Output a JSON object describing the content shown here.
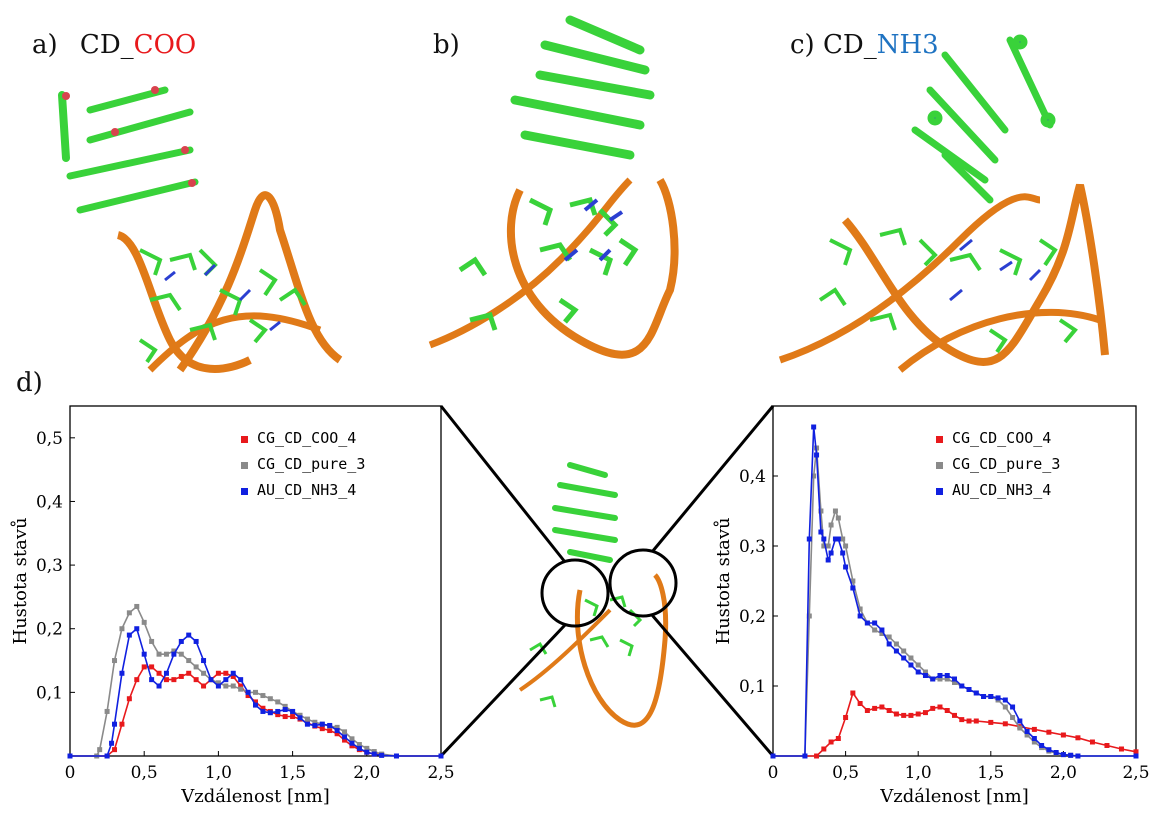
{
  "panels": {
    "a": {
      "prefix": "a)",
      "name": "CD_",
      "suffix": "COO",
      "suffix_color": "#e8191c"
    },
    "b": {
      "prefix": "b)"
    },
    "c": {
      "prefix": "c)",
      "name": "CD_",
      "suffix": "NH3",
      "suffix_color": "#1f73c2"
    },
    "d": {
      "prefix": "d)"
    }
  },
  "colors": {
    "ribbon": "#e07a18",
    "base_green": "#39d23a",
    "nitrogen": "#2b3fd1",
    "oxygen": "#d8434e"
  },
  "chart_data": [
    {
      "type": "line",
      "xlabel": "Vzdálenost [nm]",
      "ylabel": "Hustota stavů",
      "xlim": [
        0,
        2.5
      ],
      "ylim": [
        0,
        0.55
      ],
      "xticks": [
        "0",
        "0,5",
        "1,0",
        "1,5",
        "2,0",
        "2,5"
      ],
      "yticks": [
        "0,1",
        "0,2",
        "0,3",
        "0,4",
        "0,5"
      ],
      "legend_position": "top-right",
      "series": [
        {
          "name": "CG_CD_COO_4",
          "color": "#e8191c",
          "x": [
            0,
            0.25,
            0.3,
            0.35,
            0.4,
            0.45,
            0.5,
            0.55,
            0.6,
            0.65,
            0.7,
            0.75,
            0.8,
            0.85,
            0.9,
            0.95,
            1.0,
            1.05,
            1.1,
            1.15,
            1.2,
            1.25,
            1.3,
            1.35,
            1.4,
            1.45,
            1.5,
            1.55,
            1.6,
            1.65,
            1.7,
            1.75,
            1.8,
            1.85,
            1.9,
            1.95,
            2.0,
            2.05,
            2.1,
            2.2,
            2.5
          ],
          "y": [
            0,
            0,
            0.01,
            0.05,
            0.09,
            0.12,
            0.14,
            0.14,
            0.13,
            0.12,
            0.12,
            0.125,
            0.13,
            0.12,
            0.11,
            0.12,
            0.13,
            0.13,
            0.125,
            0.11,
            0.095,
            0.085,
            0.075,
            0.07,
            0.065,
            0.062,
            0.062,
            0.058,
            0.052,
            0.047,
            0.043,
            0.04,
            0.035,
            0.025,
            0.016,
            0.01,
            0.006,
            0.003,
            0.002,
            0,
            0
          ]
        },
        {
          "name": "CG_CD_pure_3",
          "color": "#8a8a8a",
          "x": [
            0,
            0.18,
            0.2,
            0.25,
            0.3,
            0.35,
            0.4,
            0.45,
            0.5,
            0.55,
            0.6,
            0.65,
            0.7,
            0.75,
            0.8,
            0.85,
            0.9,
            0.95,
            1.0,
            1.05,
            1.1,
            1.15,
            1.2,
            1.25,
            1.3,
            1.35,
            1.4,
            1.45,
            1.5,
            1.55,
            1.6,
            1.65,
            1.7,
            1.75,
            1.8,
            1.85,
            1.9,
            1.95,
            2.0,
            2.05,
            2.1,
            2.2,
            2.5
          ],
          "y": [
            0,
            0,
            0.01,
            0.07,
            0.15,
            0.2,
            0.225,
            0.235,
            0.21,
            0.18,
            0.16,
            0.16,
            0.165,
            0.16,
            0.15,
            0.14,
            0.13,
            0.12,
            0.115,
            0.11,
            0.11,
            0.105,
            0.1,
            0.1,
            0.095,
            0.09,
            0.085,
            0.078,
            0.07,
            0.064,
            0.058,
            0.053,
            0.05,
            0.047,
            0.045,
            0.038,
            0.027,
            0.018,
            0.012,
            0.007,
            0.003,
            0,
            0
          ]
        },
        {
          "name": "AU_CD_NH3_4",
          "color": "#1020e0",
          "x": [
            0,
            0.25,
            0.28,
            0.3,
            0.35,
            0.4,
            0.45,
            0.5,
            0.55,
            0.6,
            0.65,
            0.7,
            0.75,
            0.8,
            0.85,
            0.9,
            0.95,
            1.0,
            1.05,
            1.1,
            1.15,
            1.2,
            1.25,
            1.3,
            1.35,
            1.4,
            1.45,
            1.5,
            1.55,
            1.6,
            1.65,
            1.7,
            1.75,
            1.8,
            1.85,
            1.9,
            1.95,
            2.0,
            2.05,
            2.1,
            2.2,
            2.5
          ],
          "y": [
            0,
            0,
            0.02,
            0.05,
            0.13,
            0.19,
            0.2,
            0.16,
            0.12,
            0.11,
            0.13,
            0.16,
            0.18,
            0.19,
            0.18,
            0.15,
            0.12,
            0.11,
            0.12,
            0.13,
            0.12,
            0.1,
            0.08,
            0.07,
            0.068,
            0.07,
            0.073,
            0.07,
            0.06,
            0.05,
            0.048,
            0.05,
            0.048,
            0.04,
            0.03,
            0.02,
            0.012,
            0.006,
            0.003,
            0.001,
            0,
            0
          ]
        }
      ]
    },
    {
      "type": "line",
      "xlabel": "Vzdálenost [nm]",
      "ylabel": "Hustota stavů",
      "xlim": [
        0,
        2.5
      ],
      "ylim": [
        0,
        0.5
      ],
      "xticks": [
        "0",
        "0,5",
        "1,0",
        "1,5",
        "2,0",
        "2,5"
      ],
      "yticks": [
        "0,1",
        "0,2",
        "0,3",
        "0,4"
      ],
      "legend_position": "top-right",
      "series": [
        {
          "name": "CG_CD_COO_4",
          "color": "#e8191c",
          "x": [
            0,
            0.3,
            0.35,
            0.4,
            0.45,
            0.5,
            0.55,
            0.6,
            0.65,
            0.7,
            0.75,
            0.8,
            0.85,
            0.9,
            0.95,
            1.0,
            1.05,
            1.1,
            1.15,
            1.2,
            1.25,
            1.3,
            1.35,
            1.4,
            1.5,
            1.6,
            1.7,
            1.8,
            1.9,
            2.0,
            2.1,
            2.2,
            2.3,
            2.4,
            2.5
          ],
          "y": [
            0,
            0,
            0.01,
            0.02,
            0.025,
            0.055,
            0.09,
            0.075,
            0.065,
            0.068,
            0.07,
            0.065,
            0.06,
            0.058,
            0.058,
            0.06,
            0.062,
            0.068,
            0.07,
            0.065,
            0.058,
            0.052,
            0.05,
            0.05,
            0.048,
            0.046,
            0.042,
            0.038,
            0.034,
            0.03,
            0.026,
            0.02,
            0.015,
            0.01,
            0.006
          ]
        },
        {
          "name": "CG_CD_pure_3",
          "color": "#8a8a8a",
          "x": [
            0,
            0.22,
            0.25,
            0.28,
            0.3,
            0.33,
            0.35,
            0.38,
            0.4,
            0.43,
            0.45,
            0.48,
            0.5,
            0.55,
            0.6,
            0.65,
            0.7,
            0.75,
            0.8,
            0.85,
            0.9,
            0.95,
            1.0,
            1.05,
            1.1,
            1.15,
            1.2,
            1.25,
            1.3,
            1.35,
            1.4,
            1.45,
            1.5,
            1.55,
            1.6,
            1.65,
            1.7,
            1.75,
            1.8,
            1.85,
            1.9,
            1.95,
            2.0,
            2.05,
            2.1,
            2.5
          ],
          "y": [
            0,
            0,
            0.2,
            0.4,
            0.44,
            0.35,
            0.3,
            0.3,
            0.33,
            0.35,
            0.34,
            0.31,
            0.3,
            0.25,
            0.21,
            0.19,
            0.18,
            0.175,
            0.17,
            0.16,
            0.15,
            0.14,
            0.13,
            0.12,
            0.11,
            0.11,
            0.11,
            0.105,
            0.1,
            0.095,
            0.09,
            0.085,
            0.085,
            0.08,
            0.07,
            0.055,
            0.04,
            0.03,
            0.02,
            0.012,
            0.007,
            0.004,
            0.002,
            0.001,
            0,
            0
          ]
        },
        {
          "name": "AU_CD_NH3_4",
          "color": "#1020e0",
          "x": [
            0,
            0.22,
            0.25,
            0.28,
            0.3,
            0.33,
            0.35,
            0.38,
            0.4,
            0.43,
            0.45,
            0.48,
            0.5,
            0.55,
            0.6,
            0.65,
            0.7,
            0.75,
            0.8,
            0.85,
            0.9,
            0.95,
            1.0,
            1.05,
            1.1,
            1.15,
            1.2,
            1.25,
            1.3,
            1.35,
            1.4,
            1.45,
            1.5,
            1.55,
            1.6,
            1.65,
            1.7,
            1.75,
            1.8,
            1.85,
            1.9,
            1.95,
            2.0,
            2.05,
            2.1,
            2.5
          ],
          "y": [
            0,
            0,
            0.31,
            0.47,
            0.43,
            0.32,
            0.31,
            0.28,
            0.29,
            0.31,
            0.31,
            0.29,
            0.27,
            0.24,
            0.2,
            0.19,
            0.19,
            0.18,
            0.16,
            0.15,
            0.14,
            0.13,
            0.12,
            0.115,
            0.11,
            0.115,
            0.115,
            0.11,
            0.1,
            0.095,
            0.09,
            0.085,
            0.085,
            0.083,
            0.08,
            0.07,
            0.05,
            0.035,
            0.025,
            0.015,
            0.009,
            0.005,
            0.002,
            0.001,
            0,
            0
          ]
        }
      ]
    }
  ]
}
